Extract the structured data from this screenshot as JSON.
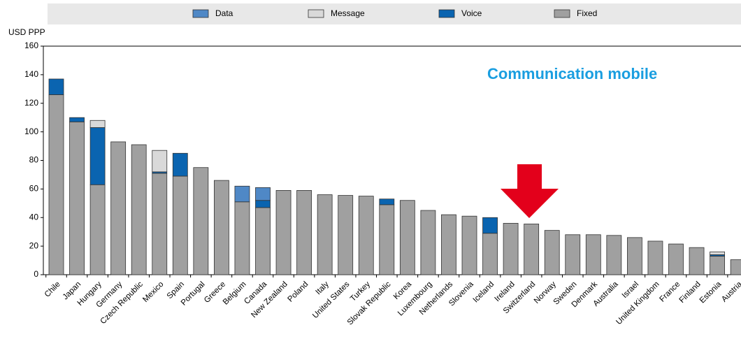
{
  "chart_data": {
    "type": "stacked_bar",
    "y_axis_label": "USD PPP",
    "annotation": "Communication mobile",
    "categories": [
      "Chile",
      "Japan",
      "Hungary",
      "Germany",
      "Czech Republic",
      "Mexico",
      "Spain",
      "Portugal",
      "Greece",
      "Belgium",
      "Canada",
      "New Zealand",
      "Poland",
      "Italy",
      "United States",
      "Turkey",
      "Slovak Republic",
      "Korea",
      "Luxembourg",
      "Netherlands",
      "Slovenia",
      "Iceland",
      "Ireland",
      "Switzerland",
      "Norway",
      "Sweden",
      "Denmark",
      "Australia",
      "Israel",
      "United Kingdom",
      "France",
      "Finland",
      "Estonia",
      "Austria"
    ],
    "series": [
      {
        "name": "Data",
        "color": "#4f88c6",
        "values": [
          0,
          0,
          0,
          0,
          0,
          0,
          0,
          0,
          0,
          11,
          9,
          0,
          0,
          0,
          0,
          0,
          0,
          0,
          0,
          0,
          0,
          0,
          0,
          0,
          0,
          0,
          0,
          0,
          0,
          0,
          0,
          0,
          0,
          0
        ]
      },
      {
        "name": "Message",
        "color": "#d9d9d9",
        "values": [
          0,
          0,
          5,
          0,
          0,
          15,
          0,
          0,
          0,
          0,
          0,
          0,
          0,
          0,
          0,
          0,
          0,
          0,
          0,
          0,
          0,
          0,
          0,
          0,
          0,
          0,
          0,
          0,
          0,
          0,
          0,
          0,
          2,
          0
        ]
      },
      {
        "name": "Voice",
        "color": "#0a64b0",
        "values": [
          11,
          3,
          40,
          0,
          0,
          1,
          16,
          0,
          0,
          0,
          5,
          0,
          0,
          0,
          0,
          0,
          4,
          0,
          0,
          0,
          0,
          11,
          0,
          0,
          0,
          0,
          0,
          0,
          0,
          0,
          0,
          0,
          1,
          0
        ]
      },
      {
        "name": "Fixed",
        "color": "#a0a0a0",
        "values": [
          126,
          107,
          63,
          93,
          91,
          71,
          69,
          75,
          66,
          51,
          47,
          59,
          59,
          56,
          55.5,
          55,
          49,
          52,
          45,
          42,
          41,
          29,
          36,
          35.5,
          31,
          28,
          28,
          27.5,
          26,
          23.5,
          21.5,
          19,
          13,
          10.5
        ]
      }
    ],
    "ylim": [
      0,
      160
    ],
    "yticks": [
      0,
      20,
      40,
      60,
      80,
      100,
      120,
      140,
      160
    ],
    "grid": false
  }
}
